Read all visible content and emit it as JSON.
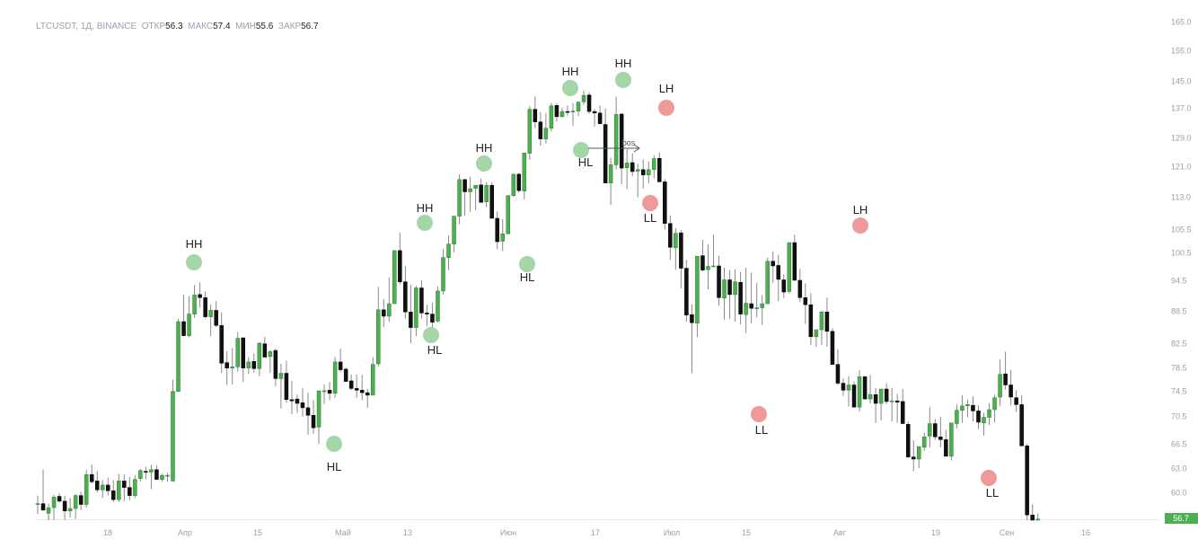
{
  "header": {
    "symbol": "LTCUSDT, 1Д, BINANCE",
    "open_label": "ОТКР",
    "open_value": "56.3",
    "high_label": "МАКС",
    "high_value": "57.4",
    "low_label": "МИН",
    "low_value": "55.6",
    "close_label": "ЗАКР",
    "close_value": "56.7"
  },
  "colors": {
    "up": "#4caf50",
    "down": "#111111",
    "wick": "#8a8a8a",
    "bullish_marker": "#a5d6a7",
    "bearish_marker": "#ef9a9a",
    "axis_text": "#9aa0ad",
    "price_tag": "#4caf50"
  },
  "chart_data": {
    "type": "candlestick",
    "y_axis": {
      "position": "right",
      "ticks": [
        "165.0",
        "155.0",
        "145.0",
        "137.0",
        "129.0",
        "121.0",
        "113.0",
        "105.5",
        "100.5",
        "94.5",
        "88.5",
        "82.5",
        "78.5",
        "74.5",
        "70.5",
        "66.5",
        "63.0",
        "60.0"
      ]
    },
    "x_axis": {
      "labels": [
        "18",
        "Апр",
        "15",
        "Май",
        "13",
        "Июн",
        "17",
        "Июл",
        "15",
        "Авг",
        "19",
        "Сен",
        "16"
      ]
    },
    "last_price_tag": "56.7",
    "annotations": [
      {
        "label": "HH",
        "kind": "bullish"
      },
      {
        "label": "HL",
        "kind": "bullish"
      },
      {
        "label": "HH",
        "kind": "bullish"
      },
      {
        "label": "HL",
        "kind": "bullish"
      },
      {
        "label": "HH",
        "kind": "bullish"
      },
      {
        "label": "HL",
        "kind": "bullish"
      },
      {
        "label": "HH",
        "kind": "bullish"
      },
      {
        "label": "HL",
        "kind": "bullish"
      },
      {
        "label": "HH",
        "kind": "bullish"
      },
      {
        "label": "LH",
        "kind": "bearish"
      },
      {
        "label": "LL",
        "kind": "bearish"
      },
      {
        "label": "LL",
        "kind": "bearish"
      },
      {
        "label": "LH",
        "kind": "bearish"
      },
      {
        "label": "LL",
        "kind": "bearish"
      }
    ],
    "bos_label": "bos",
    "ohlc_daily": [
      [
        58.5,
        59.6,
        57.3,
        58.6
      ],
      [
        58.6,
        62.8,
        57.7,
        57.8
      ],
      [
        57.4,
        58.6,
        55.9,
        58.1
      ],
      [
        58.1,
        59.7,
        56.3,
        59.4
      ],
      [
        59.5,
        59.9,
        58.7,
        58.9
      ],
      [
        58.9,
        59.6,
        56.0,
        57.7
      ],
      [
        57.7,
        59.3,
        56.9,
        58.0
      ],
      [
        58.0,
        59.8,
        56.7,
        59.6
      ],
      [
        59.6,
        60.1,
        57.8,
        58.5
      ],
      [
        58.5,
        62.8,
        58.1,
        62.2
      ],
      [
        62.2,
        63.5,
        61.1,
        61.3
      ],
      [
        61.4,
        62.6,
        60.0,
        60.3
      ],
      [
        60.3,
        61.5,
        59.3,
        60.9
      ],
      [
        60.9,
        61.8,
        59.6,
        60.2
      ],
      [
        60.2,
        61.5,
        58.8,
        59.1
      ],
      [
        59.1,
        62.3,
        58.8,
        61.4
      ],
      [
        61.4,
        62.2,
        58.9,
        60.6
      ],
      [
        60.6,
        61.9,
        59.0,
        59.6
      ],
      [
        59.6,
        62.1,
        59.3,
        61.6
      ],
      [
        61.7,
        62.9,
        61.3,
        62.7
      ],
      [
        62.6,
        63.2,
        61.6,
        62.5
      ],
      [
        62.5,
        63.5,
        60.4,
        62.8
      ],
      [
        62.8,
        63.4,
        61.5,
        61.6
      ],
      [
        61.6,
        62.3,
        61.3,
        62.1
      ],
      [
        62.0,
        62.4,
        61.3,
        62.1
      ],
      [
        61.4,
        76.4,
        61.3,
        74.4
      ],
      [
        74.4,
        87.0,
        74.5,
        86.5
      ],
      [
        86.5,
        91.7,
        83.8,
        83.9
      ],
      [
        83.9,
        91.4,
        83.6,
        87.9
      ],
      [
        87.9,
        93.6,
        87.2,
        91.6
      ],
      [
        91.7,
        94.1,
        89.1,
        91.1
      ],
      [
        91.1,
        92.3,
        87.1,
        87.4
      ],
      [
        87.4,
        89.8,
        83.8,
        88.6
      ],
      [
        88.6,
        90.4,
        85.5,
        85.8
      ],
      [
        85.8,
        88.2,
        77.6,
        79.2
      ],
      [
        79.3,
        81.2,
        75.5,
        78.4
      ],
      [
        78.4,
        81.7,
        75.6,
        78.6
      ],
      [
        78.6,
        84.6,
        77.8,
        83.4
      ],
      [
        83.5,
        83.4,
        76.0,
        78.4
      ],
      [
        78.4,
        80.2,
        77.4,
        79.4
      ],
      [
        79.5,
        80.8,
        77.6,
        78.3
      ],
      [
        78.3,
        82.7,
        77.0,
        82.5
      ],
      [
        82.4,
        83.7,
        80.4,
        80.2
      ],
      [
        80.3,
        81.4,
        77.6,
        81.1
      ],
      [
        81.3,
        81.6,
        75.3,
        76.6
      ],
      [
        76.6,
        79.1,
        71.7,
        77.5
      ],
      [
        77.5,
        79.6,
        72.6,
        73.1
      ],
      [
        73.1,
        76.2,
        70.8,
        72.9
      ],
      [
        73.2,
        73.9,
        71.0,
        72.5
      ],
      [
        72.6,
        75.0,
        70.4,
        71.8
      ],
      [
        71.8,
        74.2,
        67.8,
        70.6
      ],
      [
        70.6,
        73.0,
        67.9,
        68.8
      ],
      [
        68.9,
        71.8,
        66.5,
        74.5
      ],
      [
        74.5,
        75.6,
        72.4,
        74.5
      ],
      [
        74.6,
        76.0,
        73.0,
        74.1
      ],
      [
        74.1,
        80.2,
        73.4,
        79.4
      ],
      [
        79.4,
        81.6,
        77.7,
        78.1
      ],
      [
        78.2,
        78.5,
        76.1,
        76.1
      ],
      [
        76.2,
        77.3,
        74.6,
        74.9
      ],
      [
        74.9,
        77.3,
        73.4,
        74.6
      ],
      [
        74.6,
        77.2,
        73.0,
        74.2
      ],
      [
        74.2,
        74.8,
        71.8,
        73.8
      ],
      [
        73.8,
        80.2,
        74.1,
        79.0
      ],
      [
        79.1,
        93.2,
        78.6,
        88.7
      ],
      [
        88.7,
        90.8,
        85.5,
        87.5
      ],
      [
        87.5,
        95.1,
        86.5,
        89.9
      ],
      [
        89.9,
        100.6,
        90.3,
        100.9
      ],
      [
        100.9,
        104.7,
        93.7,
        94.2
      ],
      [
        94.2,
        97.6,
        87.1,
        88.3
      ],
      [
        88.3,
        93.6,
        82.5,
        85.4
      ],
      [
        85.4,
        93.4,
        83.8,
        93.0
      ],
      [
        93.0,
        94.5,
        87.1,
        88.1
      ],
      [
        88.1,
        89.7,
        85.7,
        87.9
      ],
      [
        87.9,
        90.1,
        84.5,
        86.4
      ],
      [
        86.6,
        93.3,
        86.3,
        92.4
      ],
      [
        92.4,
        101.2,
        91.7,
        99.4
      ],
      [
        99.4,
        104.1,
        96.7,
        102.3
      ],
      [
        102.3,
        106.6,
        100.5,
        108.5
      ],
      [
        108.5,
        118.9,
        106.6,
        117.5
      ],
      [
        117.5,
        117.7,
        108.6,
        114.3
      ],
      [
        114.3,
        118.2,
        109.5,
        115.1
      ],
      [
        115.2,
        116.1,
        109.9,
        116.0
      ],
      [
        116.1,
        117.8,
        111.6,
        111.7
      ],
      [
        111.8,
        116.8,
        110.6,
        116.0
      ],
      [
        116.0,
        116.8,
        108.1,
        108.0
      ],
      [
        108.0,
        109.6,
        101.2,
        102.8
      ],
      [
        102.9,
        107.8,
        100.8,
        104.5
      ],
      [
        104.5,
        113.3,
        104.9,
        113.3
      ],
      [
        113.3,
        118.5,
        113.0,
        118.9
      ],
      [
        118.9,
        119.3,
        114.1,
        114.6
      ],
      [
        114.5,
        124.3,
        112.4,
        124.7
      ],
      [
        124.6,
        137.5,
        122.8,
        136.6
      ],
      [
        136.6,
        140.4,
        131.5,
        133.2
      ],
      [
        133.2,
        135.8,
        126.7,
        128.6
      ],
      [
        128.6,
        135.5,
        127.4,
        131.5
      ],
      [
        131.5,
        138.4,
        130.6,
        137.6
      ],
      [
        137.7,
        138.3,
        133.3,
        134.6
      ],
      [
        134.6,
        137.1,
        134.4,
        136.0
      ],
      [
        136.0,
        137.7,
        134.9,
        135.9
      ],
      [
        136.1,
        138.4,
        132.1,
        136.1
      ],
      [
        136.1,
        138.9,
        134.8,
        138.7
      ],
      [
        138.8,
        142.1,
        137.9,
        140.7
      ],
      [
        140.8,
        141.6,
        135.4,
        136.0
      ],
      [
        136.0,
        136.6,
        131.9,
        135.6
      ],
      [
        135.6,
        137.7,
        132.6,
        132.7
      ],
      [
        132.5,
        136.8,
        124.7,
        116.6
      ],
      [
        116.6,
        123.4,
        111.1,
        121.4
      ],
      [
        121.4,
        140.3,
        120.1,
        135.2
      ],
      [
        135.3,
        135.6,
        116.3,
        120.5
      ],
      [
        120.6,
        125.8,
        115.0,
        121.9
      ],
      [
        122.0,
        124.6,
        118.4,
        119.6
      ],
      [
        119.7,
        121.7,
        112.9,
        120.1
      ],
      [
        120.1,
        122.9,
        115.2,
        118.7
      ],
      [
        118.7,
        122.3,
        116.5,
        120.1
      ],
      [
        120.1,
        124.1,
        117.8,
        123.1
      ],
      [
        123.2,
        124.8,
        117.4,
        116.9
      ],
      [
        116.9,
        117.6,
        105.4,
        106.8
      ],
      [
        106.8,
        108.7,
        98.9,
        101.6
      ],
      [
        101.5,
        105.7,
        96.8,
        104.6
      ],
      [
        104.7,
        105.3,
        92.9,
        97.1
      ],
      [
        97.1,
        98.9,
        86.5,
        87.7
      ],
      [
        87.8,
        89.8,
        77.5,
        86.3
      ],
      [
        86.2,
        98.7,
        83.6,
        99.7
      ],
      [
        99.8,
        103.2,
        96.4,
        96.7
      ],
      [
        96.8,
        102.2,
        92.7,
        97.5
      ],
      [
        97.6,
        104.3,
        97.6,
        97.6
      ],
      [
        97.6,
        99.8,
        89.5,
        91.1
      ],
      [
        91.0,
        97.2,
        86.8,
        94.6
      ],
      [
        94.6,
        96.7,
        87.0,
        91.7
      ],
      [
        91.7,
        96.9,
        86.5,
        94.2
      ],
      [
        94.1,
        96.3,
        86.0,
        87.9
      ],
      [
        87.8,
        97.2,
        84.4,
        90.0
      ],
      [
        89.9,
        96.2,
        86.2,
        89.0
      ],
      [
        89.0,
        94.0,
        87.3,
        89.1
      ],
      [
        89.1,
        91.6,
        85.9,
        89.9
      ],
      [
        89.9,
        99.4,
        90.2,
        98.6
      ],
      [
        98.6,
        100.7,
        94.0,
        97.6
      ],
      [
        97.7,
        100.0,
        90.4,
        94.7
      ],
      [
        94.6,
        95.8,
        91.0,
        92.2
      ],
      [
        92.3,
        99.1,
        91.9,
        102.6
      ],
      [
        102.6,
        104.3,
        94.7,
        94.5
      ],
      [
        94.5,
        97.0,
        90.2,
        91.1
      ],
      [
        91.1,
        93.9,
        86.1,
        89.7
      ],
      [
        89.7,
        92.0,
        82.2,
        83.7
      ],
      [
        83.7,
        84.9,
        81.9,
        85.0
      ],
      [
        85.0,
        88.5,
        82.2,
        88.3
      ],
      [
        88.3,
        91.1,
        81.9,
        84.7
      ],
      [
        84.7,
        85.3,
        79.5,
        79.0
      ],
      [
        79.0,
        81.5,
        75.5,
        75.8
      ],
      [
        75.8,
        76.6,
        73.7,
        74.6
      ],
      [
        74.6,
        77.0,
        72.0,
        75.5
      ],
      [
        75.5,
        76.1,
        72.0,
        71.9
      ],
      [
        71.9,
        78.0,
        71.2,
        76.9
      ],
      [
        76.9,
        77.1,
        73.5,
        73.2
      ],
      [
        73.2,
        77.2,
        72.5,
        73.9
      ],
      [
        73.9,
        75.0,
        69.5,
        72.5
      ],
      [
        72.5,
        74.6,
        69.9,
        74.8
      ],
      [
        74.8,
        75.8,
        72.4,
        72.8
      ],
      [
        72.8,
        75.0,
        69.7,
        72.9
      ],
      [
        72.9,
        74.0,
        69.5,
        72.7
      ],
      [
        72.8,
        74.8,
        71.1,
        69.4
      ],
      [
        69.3,
        69.7,
        64.5,
        64.6
      ],
      [
        64.6,
        67.0,
        62.6,
        64.3
      ],
      [
        64.3,
        65.9,
        63.0,
        66.1
      ],
      [
        66.0,
        68.1,
        65.5,
        67.5
      ],
      [
        67.6,
        71.9,
        66.0,
        69.4
      ],
      [
        69.4,
        70.0,
        67.1,
        67.5
      ],
      [
        67.5,
        70.4,
        66.0,
        67.1
      ],
      [
        67.1,
        68.5,
        64.8,
        64.7
      ],
      [
        64.7,
        68.6,
        64.1,
        69.5
      ],
      [
        69.4,
        72.3,
        68.7,
        71.4
      ],
      [
        71.4,
        73.8,
        69.5,
        72.1
      ],
      [
        72.1,
        73.1,
        70.3,
        72.3
      ],
      [
        72.2,
        73.6,
        69.7,
        71.3
      ],
      [
        71.3,
        72.2,
        68.6,
        69.6
      ],
      [
        69.5,
        71.0,
        67.7,
        70.3
      ],
      [
        70.3,
        72.5,
        69.2,
        71.5
      ],
      [
        71.5,
        73.9,
        69.6,
        73.4
      ],
      [
        73.5,
        79.8,
        72.1,
        77.3
      ],
      [
        77.4,
        81.1,
        74.7,
        75.5
      ],
      [
        75.5,
        78.1,
        72.2,
        73.5
      ],
      [
        73.4,
        74.6,
        71.1,
        72.3
      ],
      [
        72.3,
        73.8,
        66.4,
        66.2
      ],
      [
        66.2,
        66.5,
        56.3,
        57.2
      ],
      [
        57.2,
        58.5,
        55.8,
        56.3
      ],
      [
        56.3,
        57.4,
        55.6,
        56.7
      ]
    ]
  }
}
